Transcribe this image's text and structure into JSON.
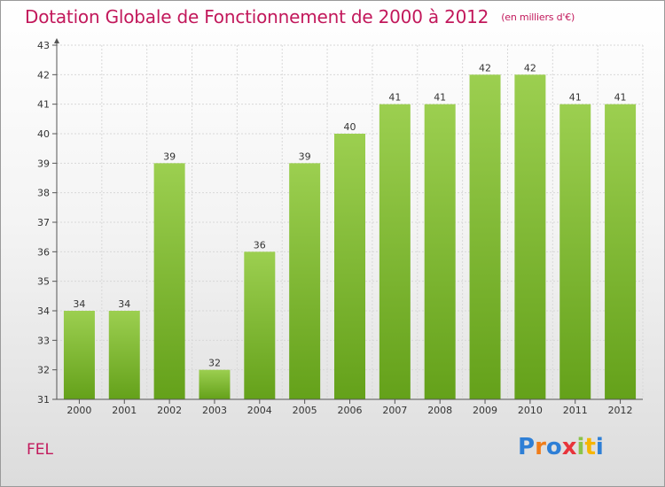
{
  "title": "Dotation Globale de Fonctionnement de 2000 à 2012",
  "unit_note": "(en milliers d'€)",
  "commune": "FEL",
  "logo": {
    "text": "Proxiti",
    "letter_colors": [
      "#2e7fd6",
      "#f07d1a",
      "#2e7fd6",
      "#e8343b",
      "#8bc34a",
      "#f7b500",
      "#2e7fd6"
    ]
  },
  "colors": {
    "title": "#c2185b",
    "bar_light": "#9ccf50",
    "bar_dark": "#64a11a",
    "axis": "#555555",
    "grid": "#d8d8d8"
  },
  "chart_data": {
    "type": "bar",
    "title": "Dotation Globale de Fonctionnement de 2000 à 2012",
    "subtitle": "(en milliers d'€)",
    "categories": [
      "2000",
      "2001",
      "2002",
      "2003",
      "2004",
      "2005",
      "2006",
      "2007",
      "2008",
      "2009",
      "2010",
      "2011",
      "2012"
    ],
    "values": [
      34,
      34,
      39,
      32,
      36,
      39,
      40,
      41,
      41,
      42,
      42,
      41,
      41
    ],
    "ylim": [
      31,
      43
    ],
    "yticks": [
      31,
      32,
      33,
      34,
      35,
      36,
      37,
      38,
      39,
      40,
      41,
      42,
      43
    ],
    "xlabel": "",
    "ylabel": "",
    "grid": true,
    "data_labels": true
  }
}
